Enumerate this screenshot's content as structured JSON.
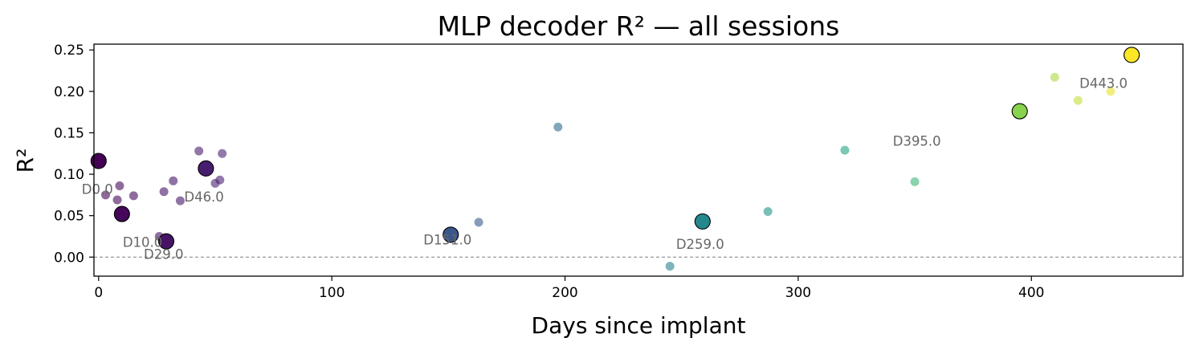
{
  "chart_data": {
    "type": "scatter",
    "title": "MLP decoder R² — all sessions",
    "xlabel": "Days since implant",
    "ylabel": "R²",
    "xlim": [
      -2,
      465
    ],
    "ylim": [
      -0.023,
      0.257
    ],
    "xticks": [
      0,
      100,
      200,
      300,
      400
    ],
    "yticks": [
      0.0,
      0.05,
      0.1,
      0.15,
      0.2,
      0.25
    ],
    "ytick_labels": [
      "0.00",
      "0.05",
      "0.10",
      "0.15",
      "0.20",
      "0.25"
    ],
    "grid": false,
    "legend": "none",
    "reference_line": {
      "y": 0.0,
      "style": "dashed",
      "color": "#808080"
    },
    "colormap": "viridis",
    "color_range": [
      0,
      443
    ],
    "small_points": [
      {
        "x": 3,
        "y": 0.075
      },
      {
        "x": 8,
        "y": 0.069
      },
      {
        "x": 9,
        "y": 0.086
      },
      {
        "x": 15,
        "y": 0.074
      },
      {
        "x": 26,
        "y": 0.025
      },
      {
        "x": 28,
        "y": 0.079
      },
      {
        "x": 32,
        "y": 0.092
      },
      {
        "x": 35,
        "y": 0.068
      },
      {
        "x": 43,
        "y": 0.128
      },
      {
        "x": 50,
        "y": 0.089
      },
      {
        "x": 52,
        "y": 0.093
      },
      {
        "x": 53,
        "y": 0.125
      },
      {
        "x": 163,
        "y": 0.042
      },
      {
        "x": 197,
        "y": 0.157
      },
      {
        "x": 245,
        "y": -0.011
      },
      {
        "x": 287,
        "y": 0.055
      },
      {
        "x": 320,
        "y": 0.129
      },
      {
        "x": 350,
        "y": 0.091
      },
      {
        "x": 410,
        "y": 0.217
      },
      {
        "x": 420,
        "y": 0.189
      },
      {
        "x": 434,
        "y": 0.2
      }
    ],
    "highlighted_points": [
      {
        "x": 0,
        "y": 0.116,
        "label": "D0.0"
      },
      {
        "x": 10,
        "y": 0.052,
        "label": "D10.0"
      },
      {
        "x": 29,
        "y": 0.019,
        "label": "D29.0"
      },
      {
        "x": 46,
        "y": 0.107,
        "label": "D46.0"
      },
      {
        "x": 151,
        "y": 0.027,
        "label": "D151.0"
      },
      {
        "x": 259,
        "y": 0.043,
        "label": "D259.0"
      },
      {
        "x": 395,
        "y": 0.176,
        "label": "D395.0"
      },
      {
        "x": 443,
        "y": 0.244,
        "label": "D443.0"
      }
    ]
  }
}
